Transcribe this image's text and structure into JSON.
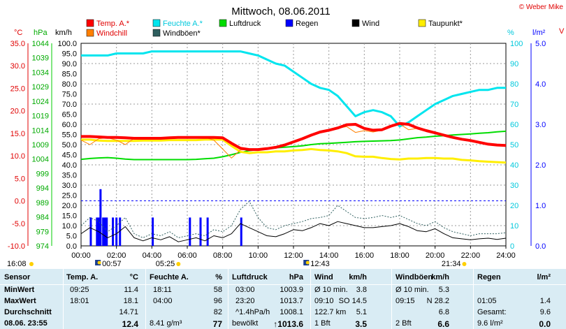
{
  "title": "Mittwoch, 08.06.2011",
  "copyright": "© Weber Mike",
  "legend": [
    {
      "name": "Temp. A.*",
      "color": "#ff0000"
    },
    {
      "name": "Feuchte A.*",
      "color": "#00e5ee"
    },
    {
      "name": "Luftdruck",
      "color": "#00dd00"
    },
    {
      "name": "Regen",
      "color": "#0000ff"
    },
    {
      "name": "Wind",
      "color": "#000000"
    },
    {
      "name": "Taupunkt*",
      "color": "#ffee00"
    },
    {
      "name": "Windchill",
      "color": "#ff8000"
    },
    {
      "name": "Windböen*",
      "color": "#2f5f5f"
    }
  ],
  "axis_units": {
    "temp": "°C",
    "press": "hPa",
    "wind": "km/h",
    "hum": "%",
    "rain": "l/m²"
  },
  "chart_data": {
    "type": "line",
    "title": "Mittwoch, 08.06.2011",
    "x": [
      "00:00",
      "00:30",
      "01:00",
      "01:30",
      "02:00",
      "02:30",
      "03:00",
      "03:30",
      "04:00",
      "04:30",
      "05:00",
      "05:30",
      "06:00",
      "06:30",
      "07:00",
      "07:30",
      "08:00",
      "08:30",
      "09:00",
      "09:30",
      "10:00",
      "10:30",
      "11:00",
      "11:30",
      "12:00",
      "12:30",
      "13:00",
      "13:30",
      "14:00",
      "14:30",
      "15:00",
      "15:30",
      "16:00",
      "16:30",
      "17:00",
      "17:30",
      "18:00",
      "18:30",
      "19:00",
      "19:30",
      "20:00",
      "20:30",
      "21:00",
      "21:30",
      "22:00",
      "22:30",
      "23:00",
      "23:30",
      "24:00"
    ],
    "x_ticks": [
      "00:00",
      "02:00",
      "04:00",
      "06:00",
      "08:00",
      "10:00",
      "12:00",
      "14:00",
      "16:00",
      "18:00",
      "20:00",
      "22:00",
      "24:00"
    ],
    "axes": {
      "temp": {
        "label": "°C",
        "range": [
          -10,
          35
        ],
        "ticks": [
          "-10.0",
          "-5.0",
          "0.0",
          "5.0",
          "10.0",
          "15.0",
          "20.0",
          "25.0",
          "30.0",
          "35.0"
        ]
      },
      "press": {
        "label": "hPa",
        "range": [
          974,
          1044
        ],
        "ticks": [
          "974",
          "979",
          "984",
          "989",
          "994",
          "999",
          "1004",
          "1009",
          "1014",
          "1019",
          "1024",
          "1029",
          "1034",
          "1039",
          "1044"
        ]
      },
      "wind": {
        "label": "km/h",
        "range": [
          0,
          100
        ],
        "ticks": [
          "0.0",
          "5.0",
          "10.0",
          "15.0",
          "20.0",
          "25.0",
          "30.0",
          "35.0",
          "40.0",
          "45.0",
          "50.0",
          "55.0",
          "60.0",
          "65.0",
          "70.0",
          "75.0",
          "80.0",
          "85.0",
          "90.0",
          "95.0",
          "100.0"
        ]
      },
      "hum": {
        "label": "%",
        "range": [
          0,
          100
        ],
        "ticks": [
          "0",
          "10",
          "20",
          "30",
          "40",
          "50",
          "60",
          "70",
          "80",
          "90",
          "100"
        ]
      },
      "rain": {
        "label": "l/m²",
        "range": [
          0,
          5
        ],
        "ticks": [
          "0.0",
          "1.0",
          "2.0",
          "3.0",
          "4.0",
          "5.0"
        ]
      }
    },
    "series": [
      {
        "name": "Temp. A.*",
        "axis": "temp",
        "color": "#ff0000",
        "width": 4,
        "values": [
          14.3,
          14.3,
          14.2,
          14.1,
          14.1,
          14.0,
          13.9,
          13.9,
          13.9,
          13.9,
          14.0,
          14.1,
          14.1,
          14.1,
          14.1,
          14.1,
          14.0,
          12.8,
          11.7,
          11.4,
          11.4,
          11.6,
          11.9,
          12.4,
          13.1,
          13.8,
          14.6,
          15.3,
          15.7,
          16.2,
          16.9,
          17.0,
          16.1,
          15.7,
          15.8,
          16.6,
          17.2,
          17.0,
          16.2,
          15.6,
          15.1,
          14.6,
          14.1,
          13.7,
          13.4,
          13.0,
          12.6,
          12.4,
          12.3
        ]
      },
      {
        "name": "Feuchte A.*",
        "axis": "hum",
        "color": "#00e5ee",
        "width": 3,
        "values": [
          94,
          94,
          94,
          94,
          95,
          95,
          95,
          95,
          96,
          96,
          96,
          96,
          96,
          96,
          96,
          96,
          96,
          96,
          96,
          95,
          94,
          92,
          90,
          89,
          86,
          83,
          80,
          78,
          77,
          74,
          69,
          64,
          66,
          67,
          66,
          64,
          59,
          61,
          64,
          67,
          70,
          72,
          74,
          75,
          76,
          77,
          77,
          78,
          78
        ]
      },
      {
        "name": "Luftdruck",
        "axis": "press",
        "color": "#00dd00",
        "width": 2,
        "values": [
          1003.9,
          1004.2,
          1004.4,
          1004.5,
          1004.3,
          1004.0,
          1003.8,
          1003.8,
          1003.8,
          1003.8,
          1003.8,
          1003.8,
          1003.8,
          1003.9,
          1004.1,
          1004.3,
          1004.8,
          1005.5,
          1006.3,
          1006.9,
          1007.3,
          1007.6,
          1007.9,
          1008.1,
          1008.3,
          1008.6,
          1009.0,
          1009.3,
          1009.4,
          1009.6,
          1009.8,
          1010.0,
          1010.1,
          1010.2,
          1010.3,
          1010.4,
          1010.6,
          1011.0,
          1011.4,
          1011.6,
          1011.9,
          1012.1,
          1012.3,
          1012.5,
          1012.7,
          1012.9,
          1013.1,
          1013.4,
          1013.6
        ]
      },
      {
        "name": "Taupunkt*",
        "axis": "temp",
        "color": "#ffee00",
        "width": 3,
        "values": [
          13.6,
          13.6,
          13.4,
          13.3,
          13.3,
          13.3,
          13.3,
          13.4,
          13.4,
          13.4,
          13.5,
          13.5,
          13.5,
          13.5,
          13.6,
          13.6,
          13.6,
          12.2,
          10.9,
          10.6,
          10.8,
          10.8,
          11.0,
          11.0,
          11.2,
          11.3,
          11.5,
          11.3,
          11.2,
          11.0,
          10.6,
          9.9,
          9.8,
          9.8,
          9.5,
          9.3,
          9.2,
          9.4,
          9.4,
          9.5,
          9.5,
          9.4,
          9.4,
          9.1,
          9.0,
          8.8,
          8.7,
          8.6,
          8.5
        ]
      },
      {
        "name": "Windchill",
        "axis": "temp",
        "color": "#ff8000",
        "width": 1,
        "values": [
          13.5,
          12.5,
          13.8,
          14.0,
          13.5,
          12.5,
          13.9,
          13.9,
          13.8,
          13.9,
          14.0,
          14.0,
          14.1,
          14.1,
          14.1,
          13.5,
          11.5,
          9.5,
          11.3,
          11.4,
          11.3,
          11.5,
          11.9,
          12.3,
          13.0,
          13.8,
          14.5,
          15.2,
          15.6,
          16.1,
          16.5,
          15.2,
          15.6,
          15.3,
          15.7,
          16.5,
          17.1,
          15.8,
          16.1,
          15.6,
          15.1,
          14.6,
          14.1,
          13.6,
          13.3,
          13.0,
          12.6,
          12.4,
          12.3
        ]
      },
      {
        "name": "Wind",
        "axis": "wind",
        "color": "#000000",
        "width": 1,
        "values": [
          6.0,
          9.0,
          7.0,
          4.0,
          6.0,
          9.5,
          4.0,
          2.5,
          4.0,
          3.0,
          4.5,
          2.0,
          3.0,
          4.0,
          2.5,
          5.0,
          4.0,
          6.0,
          11.0,
          9.0,
          7.0,
          5.0,
          4.5,
          6.0,
          8.0,
          7.5,
          9.0,
          11.0,
          10.0,
          12.0,
          11.0,
          10.0,
          9.0,
          9.0,
          9.5,
          10.0,
          11.0,
          9.5,
          7.5,
          7.0,
          8.5,
          6.0,
          4.0,
          3.5,
          3.0,
          3.5,
          3.8,
          3.2,
          3.8
        ]
      },
      {
        "name": "Windböen*",
        "axis": "wind",
        "color": "#2f5f5f",
        "width": 1,
        "dash": true,
        "values": [
          10.0,
          14.0,
          12.0,
          7.0,
          10.0,
          14.0,
          6.0,
          4.0,
          6.0,
          5.0,
          7.0,
          4.0,
          5.0,
          6.0,
          5.0,
          8.0,
          7.0,
          10.0,
          18.0,
          22.0,
          14.0,
          9.0,
          8.0,
          10.0,
          11.0,
          12.0,
          13.5,
          14.0,
          15.0,
          20.0,
          17.0,
          14.0,
          13.5,
          14.0,
          15.0,
          14.0,
          15.0,
          13.0,
          11.0,
          10.0,
          12.0,
          9.0,
          7.0,
          6.0,
          5.0,
          6.0,
          6.0,
          6.0,
          6.5
        ]
      }
    ],
    "rain_bars": {
      "name": "Regen",
      "axis": "rain",
      "color": "#0000ff",
      "x_hours": [
        0.55,
        0.9,
        1.0,
        1.1,
        1.25,
        1.35,
        1.45,
        1.8,
        2.0,
        2.2,
        4.05,
        6.15,
        6.75,
        7.15,
        9.05
      ],
      "values": [
        0.7,
        0.7,
        0.7,
        1.4,
        0.7,
        0.7,
        0.7,
        0.7,
        0.7,
        0.7,
        0.7,
        0.7,
        0.7,
        0.7,
        0.7
      ]
    },
    "dashed_reference": {
      "axis": "temp",
      "value": 0.0
    },
    "sun_events": [
      {
        "label": "16:08",
        "pos": "left",
        "kind": "sun"
      },
      {
        "label": "00:57",
        "hour": 0.95,
        "kind": "moon"
      },
      {
        "label": "05:25",
        "hour": 5.42,
        "kind": "sun"
      },
      {
        "label": "12:43",
        "hour": 12.72,
        "kind": "moon"
      },
      {
        "label": "21:34",
        "hour": 21.57,
        "kind": "sun"
      }
    ]
  },
  "table": {
    "headers": [
      "Sensor",
      "Temp. A.",
      "°C",
      "Feuchte A.",
      "%",
      "Luftdruck",
      "hPa",
      "Wind",
      "km/h",
      "Windböen",
      "km/h",
      "Regen",
      "l/m²"
    ],
    "rows": [
      {
        "label": "MinWert",
        "cols": [
          "09:25",
          "11.4",
          "18:11",
          "58",
          "03:00",
          "1003.9",
          "Ø 10 min.",
          "3.8",
          "Ø 10 min.",
          "5.3",
          "",
          ""
        ]
      },
      {
        "label": "MaxWert",
        "cols": [
          "18:01",
          "18.1",
          "04:00",
          "96",
          "23:20",
          "1013.7",
          "09:10",
          "SO 14.5",
          "09:15",
          "N 28.2",
          "01:05",
          "1.4"
        ]
      },
      {
        "label": "Durchschnitt",
        "cols": [
          "",
          "14.71",
          "",
          "82",
          "^1.4hPa/h",
          "1008.1",
          "122.7 km",
          "5.1",
          "",
          "6.8",
          "Gesamt:",
          "9.6"
        ]
      },
      {
        "label": "08.06. 23:55",
        "cols": [
          "",
          "12.4",
          "8.41 g/m³",
          "77",
          "bewölkt",
          "↑1013.6",
          "1 Bft",
          "3.5",
          "2 Bft",
          "6.6",
          "9.6 l/m²",
          "0.0"
        ]
      }
    ]
  }
}
